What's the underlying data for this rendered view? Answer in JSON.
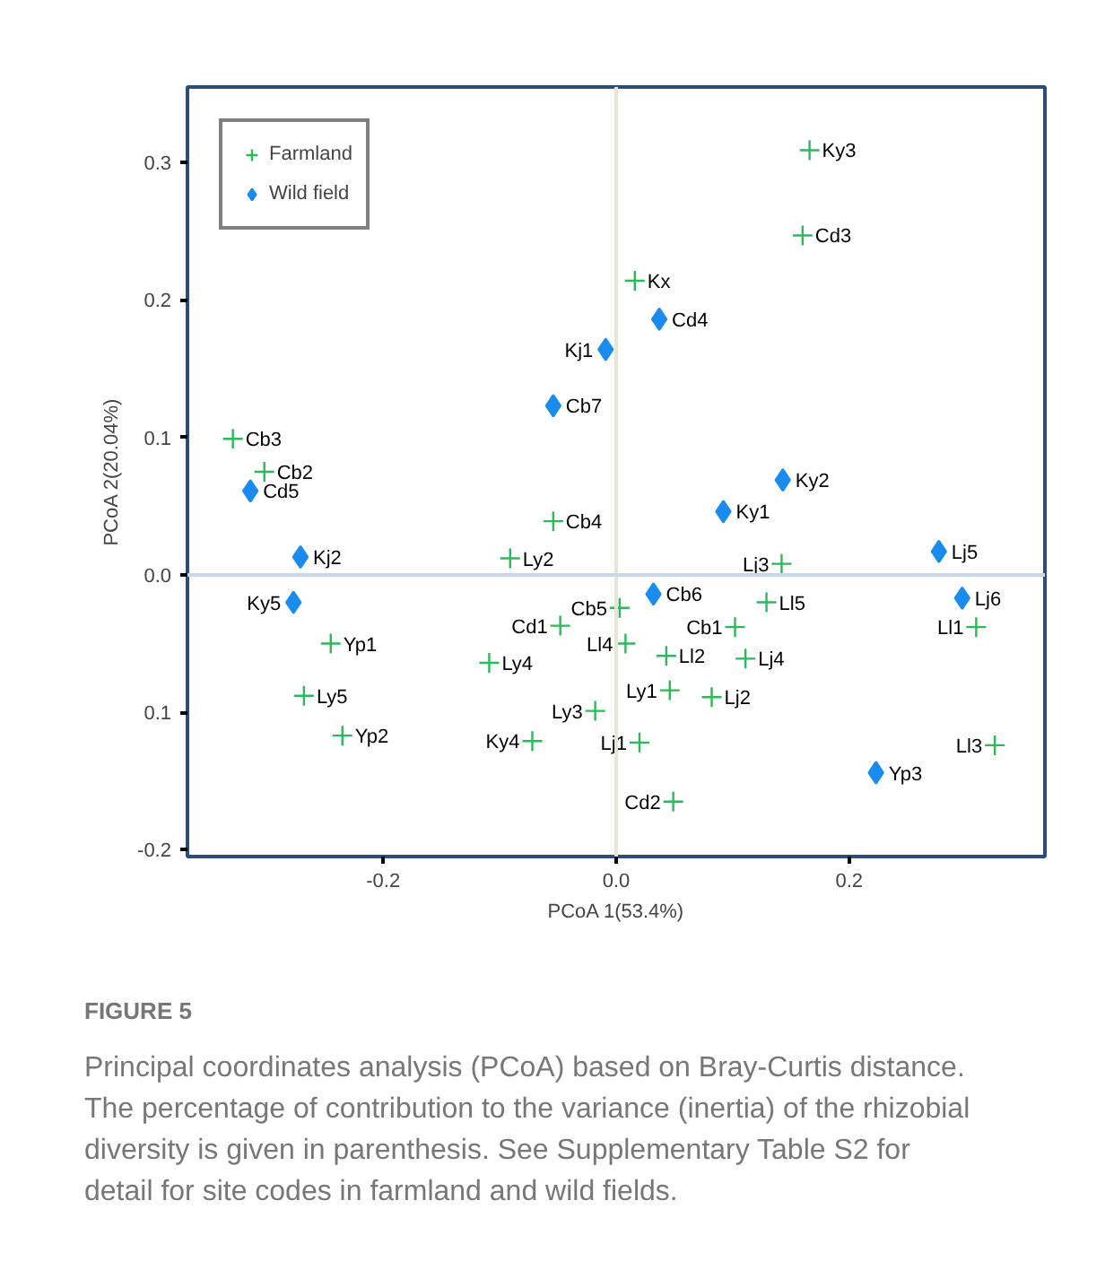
{
  "chart_data": {
    "type": "scatter",
    "xlabel": "PCoA 1(53.4%)",
    "ylabel": "PCoA 2(20.04%)",
    "xlim": [
      -0.368,
      0.368
    ],
    "ylim": [
      -0.205,
      0.355
    ],
    "xticks": [
      {
        "value": -0.2,
        "label": "-0.2"
      },
      {
        "value": 0,
        "label": "0.0"
      },
      {
        "value": 0.2,
        "label": "0.2"
      }
    ],
    "yticks": [
      {
        "value": -0.2,
        "label": "-0.2"
      },
      {
        "value": -0.1,
        "label": "0.1"
      },
      {
        "value": 0,
        "label": "0.0"
      },
      {
        "value": 0.1,
        "label": "0.1"
      },
      {
        "value": 0.2,
        "label": "0.2"
      },
      {
        "value": 0.3,
        "label": "0.3"
      }
    ],
    "grid": false,
    "legend": "top left",
    "ref_lines": [
      {
        "axis": "x",
        "value": 0,
        "color": "#e8e4d8"
      },
      {
        "axis": "y",
        "value": 0,
        "color": "#c8d8ec"
      }
    ],
    "series": [
      {
        "name": "Farmland",
        "color": "#2eb85c",
        "marker": "cross",
        "x": [
          0.166,
          0.16,
          0.016,
          -0.329,
          -0.302,
          -0.054,
          -0.091,
          0.003,
          -0.048,
          0.008,
          -0.109,
          -0.245,
          -0.268,
          -0.235,
          -0.018,
          -0.072,
          0.02,
          0.049,
          0.046,
          0.043,
          0.102,
          0.129,
          0.142,
          0.111,
          0.082,
          0.309,
          0.325
        ],
        "values": [
          0.309,
          0.247,
          0.214,
          0.099,
          0.075,
          0.039,
          0.012,
          -0.024,
          -0.037,
          -0.05,
          -0.064,
          -0.05,
          -0.088,
          -0.117,
          -0.099,
          -0.121,
          -0.122,
          -0.165,
          -0.084,
          -0.059,
          -0.038,
          -0.02,
          0.008,
          -0.061,
          -0.089,
          -0.038,
          -0.124
        ],
        "value_labels": [
          "Ky3",
          "Cd3",
          "Kx",
          "Cb3",
          "Cb2",
          "Cb4",
          "Ly2",
          "Cb5",
          "Cd1",
          "Ll4",
          "Ly4",
          "Yp1",
          "Ly5",
          "Yp2",
          "Ly3",
          "Ky4",
          "Lj1",
          "Cd2",
          "Ly1",
          "Ll2",
          "Cb1",
          "Ll5",
          "Lj3",
          "Lj4",
          "Lj2",
          "Ll1",
          "Ll3"
        ]
      },
      {
        "name": "Wild field",
        "color": "#1a8cf0",
        "marker": "diamond",
        "x": [
          0.037,
          -0.009,
          -0.054,
          0.143,
          0.092,
          -0.314,
          -0.271,
          -0.277,
          0.032,
          0.277,
          0.297,
          0.223
        ],
        "values": [
          0.186,
          0.164,
          0.123,
          0.069,
          0.046,
          0.061,
          0.013,
          -0.02,
          -0.014,
          0.017,
          -0.017,
          -0.144
        ],
        "value_labels": [
          "Cd4",
          "Kj1",
          "Cb7",
          "Ky2",
          "Ky1",
          "Cd5",
          "Kj2",
          "Ky5",
          "Cb6",
          "Lj5",
          "Lj6",
          "Yp3"
        ]
      }
    ],
    "annotations": [
      "FIGURE 5",
      "Principal coordinates analysis (PCoA) based on Bray-Curtis distance. The percentage of contribution to the variance (inertia) of the rhizobial diversity is given in parenthesis. See Supplementary Table S2 for detail for site codes in farmland and wild fields."
    ]
  }
}
